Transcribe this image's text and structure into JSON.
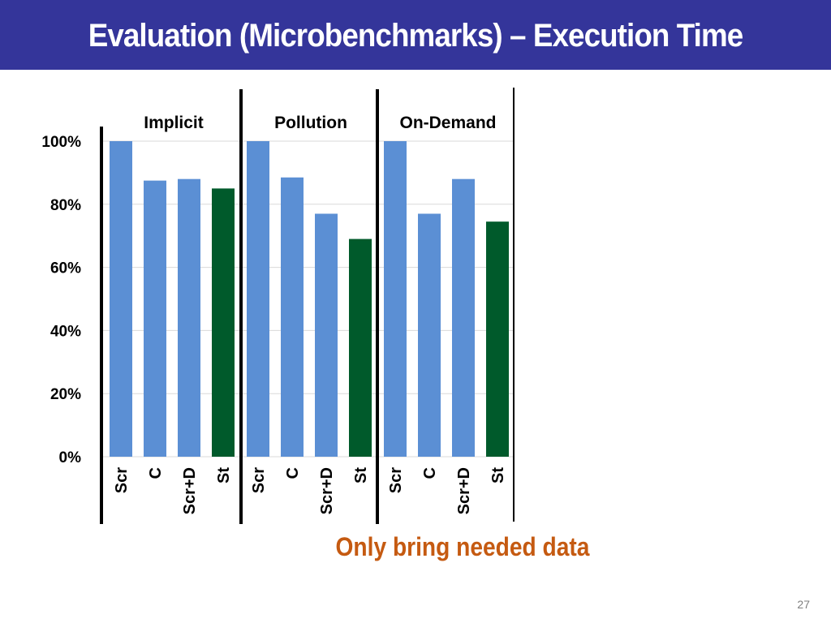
{
  "slide": {
    "title": "Evaluation (Microbenchmarks) – Execution Time",
    "callout": "Only bring needed data",
    "page_number": "27"
  },
  "colors": {
    "title_bg": "#34359a",
    "bar_default": "#5b8fd4",
    "bar_highlight": "#005a2b",
    "callout": "#c55a11"
  },
  "chart_data": {
    "type": "bar",
    "title": "",
    "xlabel": "",
    "ylabel": "",
    "ylim": [
      0,
      100
    ],
    "yticks": [
      "0%",
      "20%",
      "40%",
      "60%",
      "80%",
      "100%"
    ],
    "grid": true,
    "legend": "none",
    "groups": [
      {
        "name": "Implicit",
        "categories": [
          "Scr",
          "C",
          "Scr+D",
          "St"
        ],
        "values": [
          100,
          87.5,
          88,
          85
        ]
      },
      {
        "name": "Pollution",
        "categories": [
          "Scr",
          "C",
          "Scr+D",
          "St"
        ],
        "values": [
          100,
          88.5,
          77,
          69
        ]
      },
      {
        "name": "On-Demand",
        "categories": [
          "Scr",
          "C",
          "Scr+D",
          "St"
        ],
        "values": [
          100,
          77,
          88,
          74.5
        ]
      }
    ],
    "highlight_category": "St"
  }
}
